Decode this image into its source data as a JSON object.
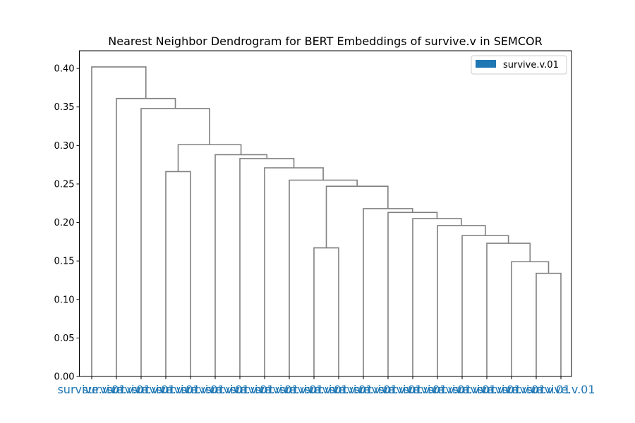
{
  "chart_data": {
    "type": "dendrogram",
    "title": "Nearest Neighbor Dendrogram for BERT Embeddings of survive.v in SEMCOR",
    "xlabel": "",
    "ylabel": "",
    "ylim": [
      0,
      0.423
    ],
    "yticks": [
      0.0,
      0.05,
      0.1,
      0.15,
      0.2,
      0.25,
      0.3,
      0.35,
      0.4
    ],
    "ytick_labels": [
      "0.00",
      "0.05",
      "0.10",
      "0.15",
      "0.20",
      "0.25",
      "0.30",
      "0.35",
      "0.40"
    ],
    "grid": false,
    "legend": {
      "position": "top-right",
      "entries": [
        {
          "label": "survive.v.01",
          "color": "#1f77b4"
        }
      ]
    },
    "link_color": "#808080",
    "leaf_label_color": "#1f77b4",
    "leaves": [
      "survive.v.01",
      "survive.v.01",
      "survive.v.01",
      "survive.v.01",
      "survive.v.01",
      "survive.v.01",
      "survive.v.01",
      "survive.v.01",
      "survive.v.01",
      "survive.v.01",
      "survive.v.01",
      "survive.v.01",
      "survive.v.01",
      "survive.v.01",
      "survive.v.01",
      "survive.v.01",
      "survive.v.01",
      "survive.v.01",
      "survive.v.01",
      "survive.v.01"
    ],
    "merges": [
      {
        "left": "L18",
        "right": "L19",
        "height": 0.134
      },
      {
        "left": "L17",
        "right": "C0",
        "height": 0.149
      },
      {
        "left": "L16",
        "right": "C1",
        "height": 0.173
      },
      {
        "left": "L15",
        "right": "C2",
        "height": 0.183
      },
      {
        "left": "L14",
        "right": "C3",
        "height": 0.196
      },
      {
        "left": "L13",
        "right": "C4",
        "height": 0.205
      },
      {
        "left": "L12",
        "right": "C5",
        "height": 0.213
      },
      {
        "left": "L11",
        "right": "C6",
        "height": 0.218
      },
      {
        "left": "L9",
        "right": "L10",
        "height": 0.167
      },
      {
        "left": "C8",
        "right": "C7",
        "height": 0.247
      },
      {
        "left": "L8",
        "right": "C9",
        "height": 0.255
      },
      {
        "left": "L7",
        "right": "C10",
        "height": 0.271
      },
      {
        "left": "L6",
        "right": "C11",
        "height": 0.283
      },
      {
        "left": "L5",
        "right": "C12",
        "height": 0.288
      },
      {
        "left": "L3",
        "right": "L4",
        "height": 0.266
      },
      {
        "left": "C14",
        "right": "C13",
        "height": 0.301
      },
      {
        "left": "L2",
        "right": "C15",
        "height": 0.348
      },
      {
        "left": "L1",
        "right": "C16",
        "height": 0.361
      },
      {
        "left": "L0",
        "right": "C17",
        "height": 0.402
      }
    ]
  }
}
